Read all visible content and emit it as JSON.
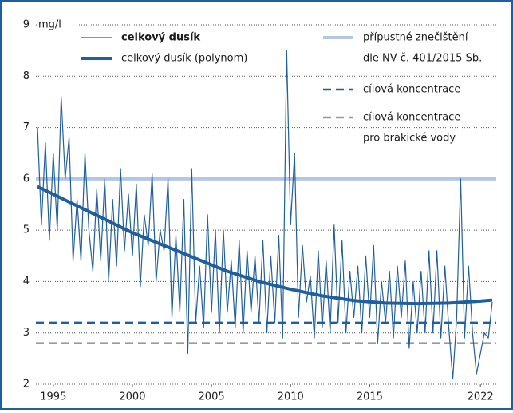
{
  "chart_data": {
    "type": "line",
    "y_unit": "mg/l",
    "xlim": [
      1993.9,
      2023
    ],
    "ylim": [
      2,
      9
    ],
    "yticks": [
      2,
      3,
      4,
      5,
      6,
      7,
      8,
      9
    ],
    "xticks": [
      1995,
      2000,
      2005,
      2010,
      2015,
      2022
    ],
    "grid": true,
    "series": [
      {
        "name": [
          "celkový dusík"
        ],
        "color": "#1f5f9e",
        "width": 1.2,
        "bold": true,
        "x": [
          1994,
          1994.25,
          1994.5,
          1994.75,
          1995,
          1995.25,
          1995.5,
          1995.75,
          1996,
          1996.25,
          1996.5,
          1996.75,
          1997,
          1997.25,
          1997.5,
          1997.75,
          1998,
          1998.25,
          1998.5,
          1998.75,
          1999,
          1999.25,
          1999.5,
          1999.75,
          2000,
          2000.25,
          2000.5,
          2000.75,
          2001,
          2001.25,
          2001.5,
          2001.75,
          2002,
          2002.25,
          2002.5,
          2002.75,
          2003,
          2003.25,
          2003.5,
          2003.75,
          2004,
          2004.25,
          2004.5,
          2004.75,
          2005,
          2005.25,
          2005.5,
          2005.75,
          2006,
          2006.25,
          2006.5,
          2006.75,
          2007,
          2007.25,
          2007.5,
          2007.75,
          2008,
          2008.25,
          2008.5,
          2008.75,
          2009,
          2009.25,
          2009.5,
          2009.75,
          2010,
          2010.25,
          2010.5,
          2010.75,
          2011,
          2011.25,
          2011.5,
          2011.75,
          2012,
          2012.25,
          2012.5,
          2012.75,
          2013,
          2013.25,
          2013.5,
          2013.75,
          2014,
          2014.25,
          2014.5,
          2014.75,
          2015,
          2015.25,
          2015.5,
          2015.75,
          2016,
          2016.25,
          2016.5,
          2016.75,
          2017,
          2017.25,
          2017.5,
          2017.75,
          2018,
          2018.25,
          2018.5,
          2018.75,
          2019,
          2019.25,
          2019.5,
          2019.75,
          2020,
          2020.25,
          2020.5,
          2020.75,
          2021,
          2021.25,
          2021.5,
          2021.75,
          2022,
          2022.25,
          2022.5,
          2022.75
        ],
        "values": [
          7.0,
          5.1,
          6.7,
          4.8,
          6.5,
          5.0,
          7.6,
          6.0,
          6.8,
          4.4,
          5.6,
          4.4,
          6.5,
          5.0,
          4.2,
          5.8,
          4.4,
          6.0,
          4.0,
          5.6,
          4.3,
          6.2,
          4.6,
          5.7,
          4.5,
          5.9,
          3.9,
          5.3,
          4.7,
          6.1,
          4.0,
          5.0,
          4.6,
          6.0,
          3.3,
          4.9,
          3.4,
          5.6,
          2.6,
          6.2,
          3.2,
          4.3,
          3.1,
          5.3,
          3.4,
          5.0,
          3.0,
          5.0,
          3.4,
          4.4,
          3.1,
          4.8,
          3.0,
          4.6,
          3.4,
          4.5,
          3.2,
          4.8,
          3.0,
          4.5,
          3.2,
          4.9,
          2.9,
          8.5,
          5.1,
          6.5,
          3.3,
          4.7,
          3.6,
          4.1,
          2.9,
          4.6,
          3.1,
          4.4,
          3.0,
          5.1,
          3.2,
          4.8,
          3.0,
          4.2,
          3.3,
          4.3,
          3.0,
          4.5,
          3.3,
          4.7,
          2.8,
          4.0,
          3.2,
          4.2,
          2.9,
          4.3,
          3.3,
          4.4,
          2.7,
          4.0,
          3.0,
          4.2,
          3.0,
          4.6,
          3.0,
          4.6,
          2.9,
          4.3,
          3.1,
          2.1,
          3.3,
          6.0,
          2.9,
          4.3,
          3.0,
          2.2,
          2.6,
          3.0,
          2.9,
          3.6
        ]
      },
      {
        "name": [
          "celkový dusík (polynom)"
        ],
        "color": "#1f5f9e",
        "width": 4,
        "x": [
          1994,
          1996,
          1998,
          2000,
          2002,
          2004,
          2006,
          2008,
          2010,
          2012,
          2014,
          2016,
          2018,
          2020,
          2022,
          2022.75
        ],
        "values": [
          5.85,
          5.55,
          5.25,
          4.95,
          4.7,
          4.45,
          4.2,
          4.0,
          3.85,
          3.72,
          3.63,
          3.58,
          3.57,
          3.58,
          3.62,
          3.64
        ]
      }
    ],
    "reference_lines": [
      {
        "name": [
          "přípustné znečištění",
          "dle NV č. 401/2015 Sb."
        ],
        "value": 6,
        "color": "#b4c6e4",
        "width": 4,
        "dashed": false
      },
      {
        "name": [
          "cílová koncentrace"
        ],
        "value": 3.2,
        "color": "#1f5f9e",
        "width": 2.5,
        "dashed": true
      },
      {
        "name": [
          "cílová koncentrace",
          "pro brakické vody"
        ],
        "value": 2.8,
        "color": "#9a9a9a",
        "width": 2.5,
        "dashed": true
      }
    ]
  }
}
